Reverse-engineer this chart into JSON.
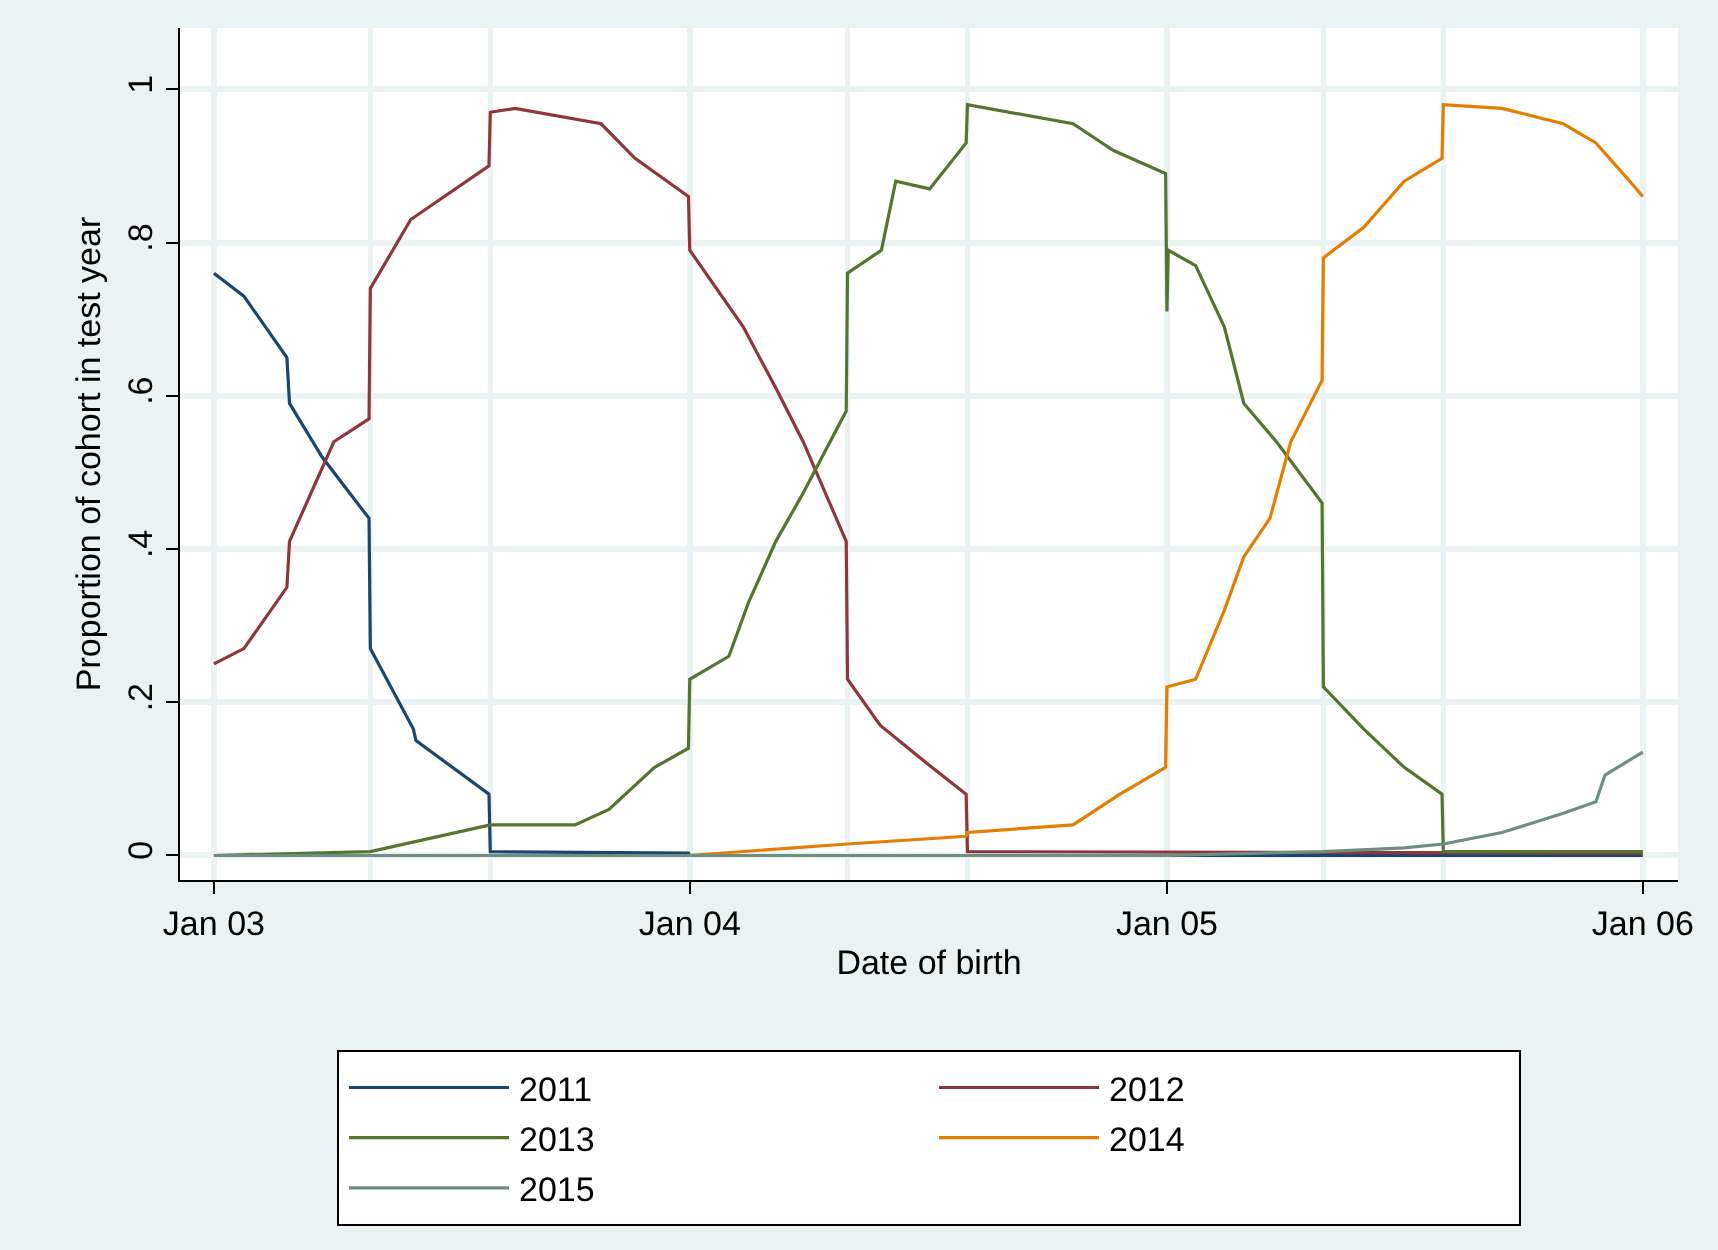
{
  "chart_data": {
    "type": "line",
    "xlabel": "Date of birth",
    "ylabel": "Proportion of cohort in test year",
    "xlim": [
      "2002-12-06",
      "2006-01-28"
    ],
    "ylim": [
      -0.032,
      1.08
    ],
    "xticks": [
      {
        "value": "2003-01-01",
        "label": "Jan 03"
      },
      {
        "value": "2004-01-01",
        "label": "Jan 04"
      },
      {
        "value": "2005-01-01",
        "label": "Jan 05"
      },
      {
        "value": "2006-01-01",
        "label": "Jan 06"
      }
    ],
    "yticks": [
      {
        "value": 0,
        "label": "0"
      },
      {
        "value": 0.2,
        "label": ".2"
      },
      {
        "value": 0.4,
        "label": ".4"
      },
      {
        "value": 0.6,
        "label": ".6"
      },
      {
        "value": 0.8,
        "label": ".8"
      },
      {
        "value": 1,
        "label": "1"
      }
    ],
    "grid": true,
    "legend": "bottom",
    "marker": "none",
    "line_style": "solid",
    "ref_lines": [
      {
        "axis": "x",
        "value": "2003-05-01",
        "color": "#eaf2f3"
      },
      {
        "axis": "x",
        "value": "2003-08-01",
        "color": "#eaf2f3"
      },
      {
        "axis": "x",
        "value": "2004-05-01",
        "color": "#eaf2f3"
      },
      {
        "axis": "x",
        "value": "2004-08-01",
        "color": "#eaf2f3"
      },
      {
        "axis": "x",
        "value": "2005-05-01",
        "color": "#eaf2f3"
      },
      {
        "axis": "x",
        "value": "2005-08-01",
        "color": "#eaf2f3"
      }
    ],
    "series": [
      {
        "name": "2011",
        "color": "#1a476f",
        "x": [
          "2003-01-01",
          "2003-01-24",
          "2003-02-26",
          "2003-02-28",
          "2003-03-25",
          "2003-04-30",
          "2003-05-01",
          "2003-06-03",
          "2003-06-05",
          "2003-07-31",
          "2003-08-01",
          "2003-12-31",
          "2004-01-01",
          "2006-01-01"
        ],
        "values": [
          0.76,
          0.73,
          0.65,
          0.59,
          0.52,
          0.44,
          0.27,
          0.165,
          0.15,
          0.08,
          0.005,
          0.003,
          0,
          0
        ]
      },
      {
        "name": "2012",
        "color": "#90353b",
        "x": [
          "2003-01-01",
          "2003-01-24",
          "2003-02-26",
          "2003-02-28",
          "2003-04-03",
          "2003-04-30",
          "2003-05-01",
          "2003-06-01",
          "2003-07-31",
          "2003-08-01",
          "2003-08-20",
          "2003-10-25",
          "2003-11-20",
          "2003-12-31",
          "2004-01-01",
          "2004-02-11",
          "2004-03-07",
          "2004-03-28",
          "2004-04-30",
          "2004-05-01",
          "2004-05-26",
          "2004-07-01",
          "2004-07-31",
          "2004-08-01",
          "2006-01-01"
        ],
        "values": [
          0.25,
          0.27,
          0.35,
          0.41,
          0.54,
          0.57,
          0.74,
          0.83,
          0.9,
          0.97,
          0.975,
          0.955,
          0.91,
          0.86,
          0.79,
          0.69,
          0.61,
          0.54,
          0.41,
          0.23,
          0.17,
          0.12,
          0.08,
          0.005,
          0.003
        ]
      },
      {
        "name": "2013",
        "color": "#55752f",
        "x": [
          "2003-01-01",
          "2003-05-01",
          "2003-08-01",
          "2003-10-05",
          "2003-10-31",
          "2003-12-05",
          "2003-12-31",
          "2004-01-01",
          "2004-01-31",
          "2004-02-15",
          "2004-03-07",
          "2004-03-27",
          "2004-04-30",
          "2004-05-01",
          "2004-05-27",
          "2004-06-07",
          "2004-07-03",
          "2004-07-31",
          "2004-08-01",
          "2004-10-21",
          "2004-11-21",
          "2004-12-31",
          "2005-01-01",
          "2005-01-02",
          "2005-01-23",
          "2005-02-14",
          "2005-03-01",
          "2005-03-26",
          "2005-04-30",
          "2005-05-01",
          "2005-06-01",
          "2005-07-02",
          "2005-07-31",
          "2005-08-01",
          "2006-01-01"
        ],
        "values": [
          0,
          0.005,
          0.04,
          0.04,
          0.06,
          0.115,
          0.14,
          0.23,
          0.26,
          0.33,
          0.41,
          0.47,
          0.58,
          0.76,
          0.79,
          0.88,
          0.87,
          0.93,
          0.98,
          0.955,
          0.92,
          0.89,
          0.71,
          0.79,
          0.77,
          0.69,
          0.59,
          0.54,
          0.46,
          0.22,
          0.165,
          0.115,
          0.08,
          0.005,
          0.005
        ]
      },
      {
        "name": "2014",
        "color": "#e37e00",
        "x": [
          "2003-01-01",
          "2003-12-31",
          "2004-05-01",
          "2004-07-31",
          "2004-08-01",
          "2004-10-21",
          "2004-11-26",
          "2004-12-31",
          "2005-01-01",
          "2005-01-23",
          "2005-02-14",
          "2005-03-01",
          "2005-03-21",
          "2005-04-06",
          "2005-04-30",
          "2005-05-01",
          "2005-06-01",
          "2005-07-02",
          "2005-07-31",
          "2005-08-01",
          "2005-09-15",
          "2005-11-01",
          "2005-11-26",
          "2005-12-22",
          "2006-01-01"
        ],
        "values": [
          0,
          0,
          0.015,
          0.025,
          0.03,
          0.04,
          0.08,
          0.115,
          0.22,
          0.23,
          0.32,
          0.39,
          0.44,
          0.54,
          0.62,
          0.78,
          0.82,
          0.88,
          0.91,
          0.98,
          0.975,
          0.955,
          0.93,
          0.88,
          0.86
        ]
      },
      {
        "name": "2015",
        "color": "#6e8e84",
        "x": [
          "2003-01-01",
          "2005-01-01",
          "2005-05-01",
          "2005-07-02",
          "2005-08-01",
          "2005-09-15",
          "2005-11-01",
          "2005-11-26",
          "2005-12-03",
          "2006-01-01"
        ],
        "values": [
          0,
          0,
          0.005,
          0.01,
          0.015,
          0.03,
          0.055,
          0.07,
          0.105,
          0.135
        ]
      }
    ]
  }
}
